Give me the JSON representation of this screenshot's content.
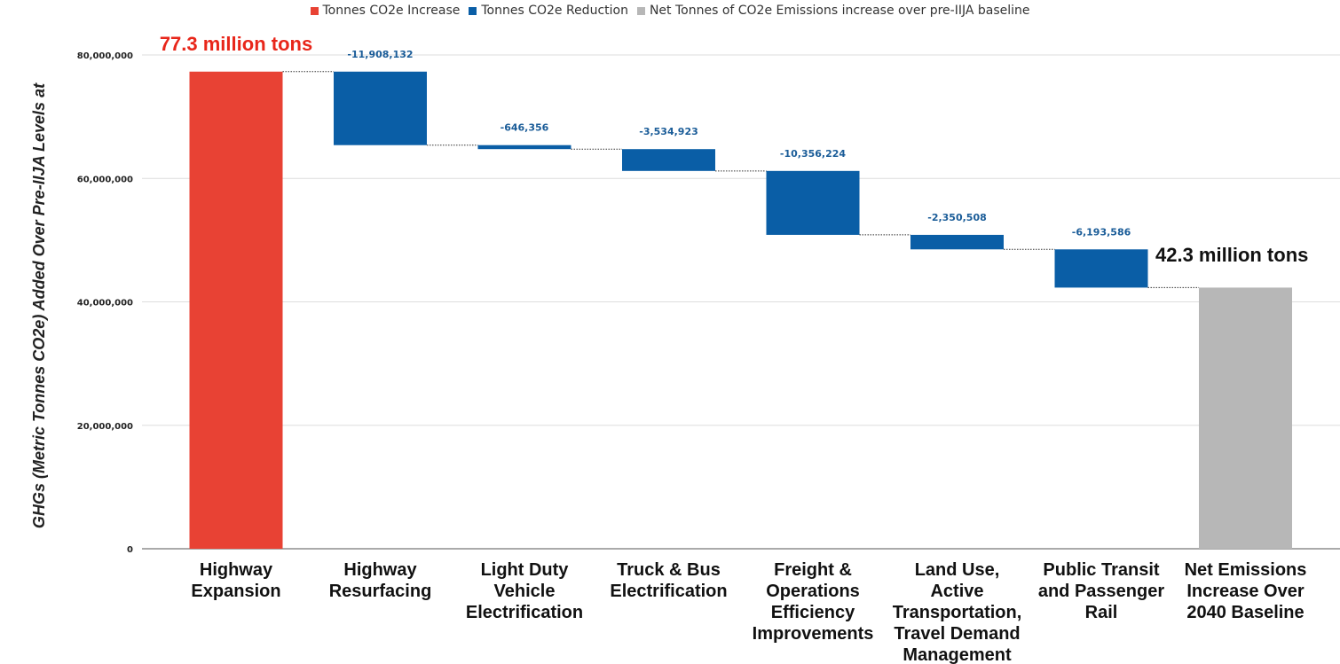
{
  "legend": [
    {
      "label": "Tonnes CO2e Increase",
      "color": "#e84234"
    },
    {
      "label": "Tonnes CO2e Reduction",
      "color": "#0a5ea6"
    },
    {
      "label": "Net Tonnes of CO2e Emissions increase over pre-IIJA baseline",
      "color": "#b7b7b7"
    }
  ],
  "annotations": {
    "start_total": "77.3 million tons",
    "end_total": "42.3 million tons"
  },
  "chart_data": {
    "type": "bar",
    "subtype": "waterfall",
    "ylabel": "GHGs (Metric Tonnes CO2e) Added Over Pre-IIJA Levels at",
    "xlabel": "",
    "ylim": [
      0,
      80000000
    ],
    "yticks": [
      0,
      20000000,
      40000000,
      60000000,
      80000000
    ],
    "ytick_labels": [
      "0",
      "20,000,000",
      "40,000,000",
      "60,000,000",
      "80,000,000"
    ],
    "grid": true,
    "legend_position": "top",
    "categories": [
      [
        "Highway",
        "Expansion"
      ],
      [
        "Highway",
        "Resurfacing"
      ],
      [
        "Light Duty",
        "Vehicle",
        "Electrification"
      ],
      [
        "Truck & Bus",
        "Electrification"
      ],
      [
        "Freight &",
        "Operations",
        "Efficiency",
        "Improvements"
      ],
      [
        "Land Use,",
        "Active",
        "Transportation,",
        "Travel Demand",
        "Management"
      ],
      [
        "Public Transit",
        "and Passenger",
        "Rail"
      ],
      [
        "Net Emissions",
        "Increase Over",
        "2040 Baseline"
      ]
    ],
    "steps": [
      {
        "kind": "increase",
        "value": 77300000,
        "label": ""
      },
      {
        "kind": "reduction",
        "value": -11908132,
        "label": "-11,908,132"
      },
      {
        "kind": "reduction",
        "value": -646356,
        "label": "-646,356"
      },
      {
        "kind": "reduction",
        "value": -3534923,
        "label": "-3,534,923"
      },
      {
        "kind": "reduction",
        "value": -10356224,
        "label": "-10,356,224"
      },
      {
        "kind": "reduction",
        "value": -2350508,
        "label": "-2,350,508"
      },
      {
        "kind": "reduction",
        "value": -6193586,
        "label": "-6,193,586"
      },
      {
        "kind": "total",
        "value": 42310271,
        "label": ""
      }
    ],
    "colors": {
      "increase": "#e84234",
      "reduction": "#0a5ea6",
      "total": "#b7b7b7",
      "start_callout": "#e8261a",
      "end_callout": "#111111"
    }
  }
}
